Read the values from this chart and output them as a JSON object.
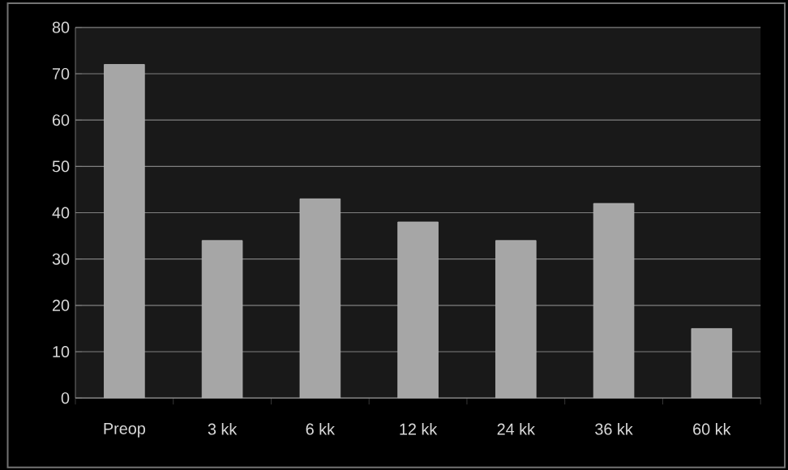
{
  "chart_data": {
    "type": "bar",
    "categories": [
      "Preop",
      "3 kk",
      "6 kk",
      "12 kk",
      "24 kk",
      "36 kk",
      "60 kk"
    ],
    "values": [
      72,
      34,
      43,
      38,
      34,
      42,
      15
    ],
    "color": "#a6a6a6",
    "ylim": [
      0,
      80
    ],
    "yticks": [
      0,
      10,
      20,
      30,
      40,
      50,
      60,
      70,
      80
    ],
    "grid": "y"
  }
}
